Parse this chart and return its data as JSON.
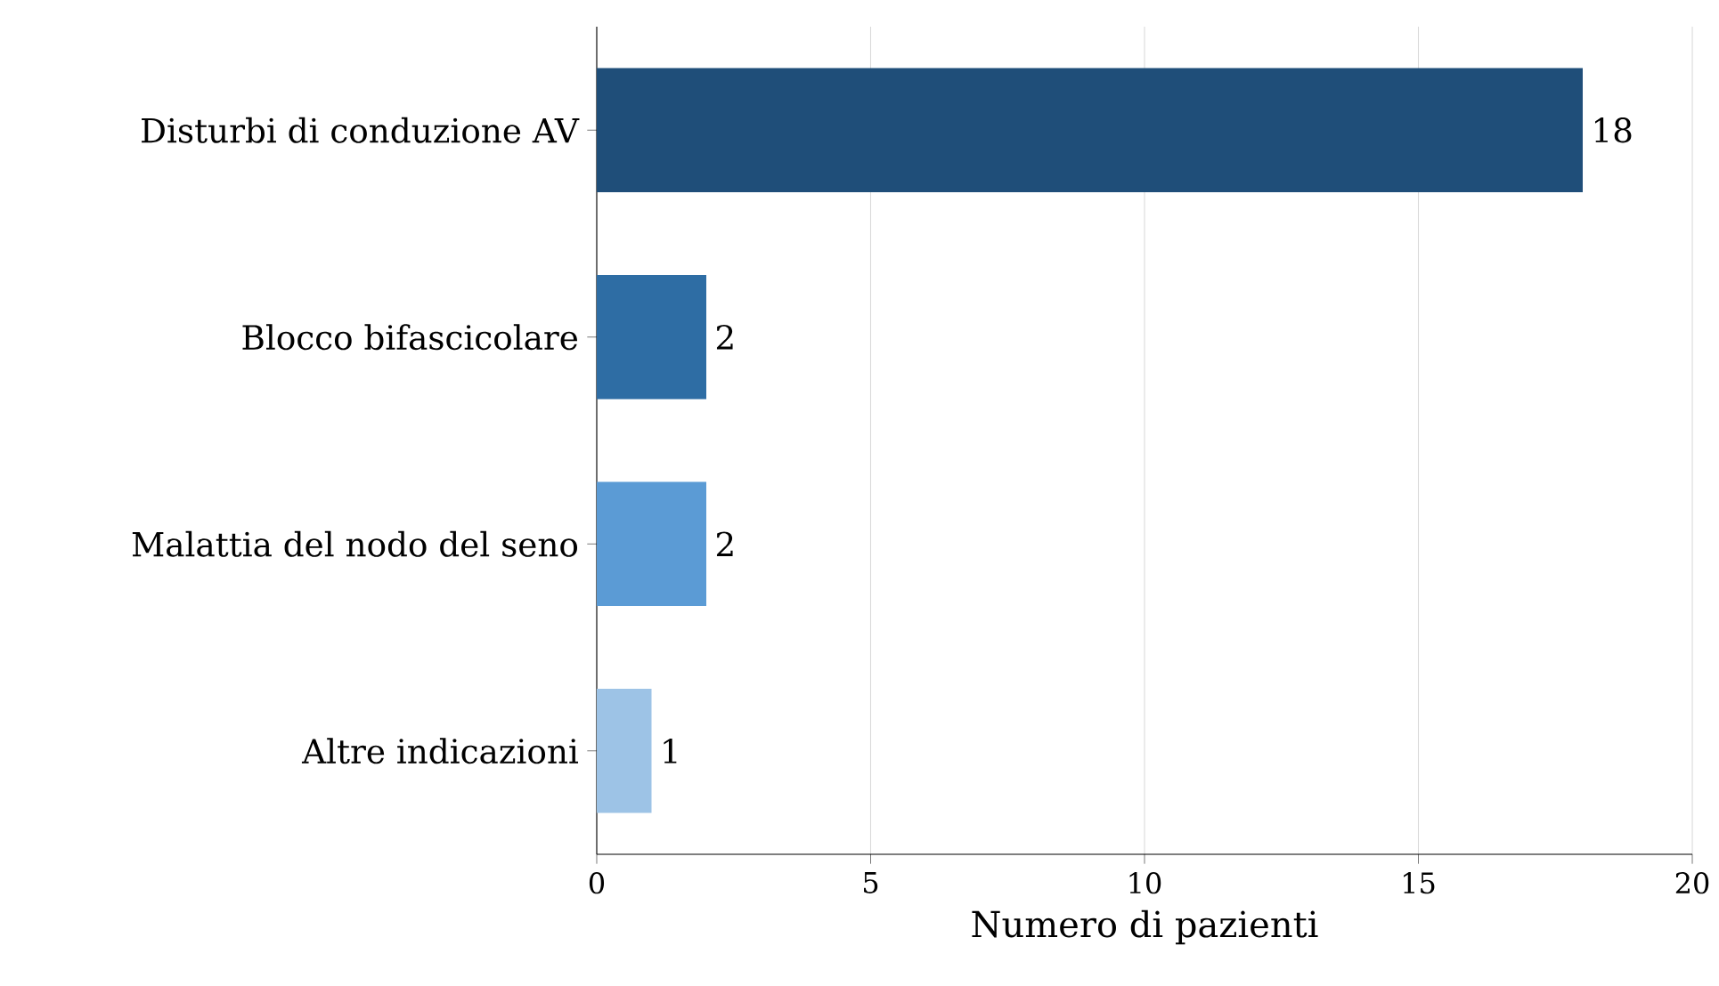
{
  "chart_data": {
    "type": "bar",
    "orientation": "horizontal",
    "xlabel": "Numero di pazienti",
    "categories": [
      "Disturbi di conduzione AV",
      "Blocco bifascicolare",
      "Malattia del nodo del seno",
      "Altre indicazioni"
    ],
    "values": [
      18,
      2,
      2,
      1
    ],
    "colors": [
      "#1f4e79",
      "#2e6da4",
      "#5b9bd5",
      "#9dc3e6"
    ],
    "xlim": [
      0,
      20
    ],
    "xticks": [
      0,
      5,
      10,
      15,
      20
    ],
    "grid": "x",
    "data_labels": true
  }
}
